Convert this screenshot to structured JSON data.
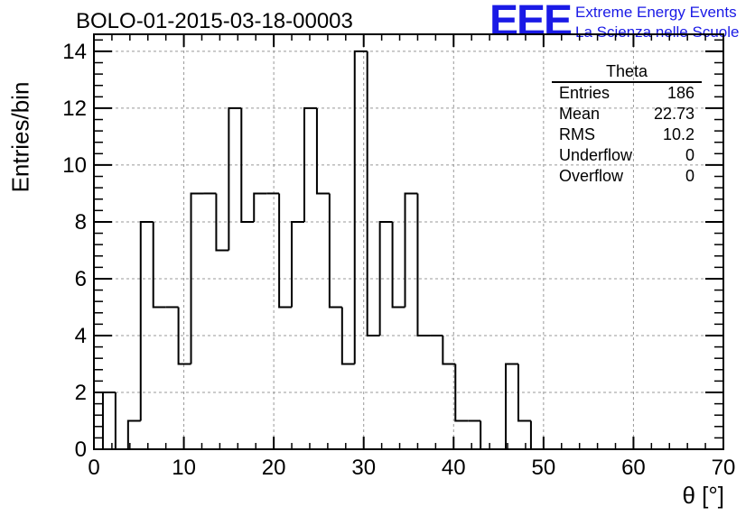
{
  "title": "BOLO-01-2015-03-18-00003",
  "logo": {
    "mark": "EEE",
    "line1": "Extreme Energy Events",
    "line2": "La Scienza nelle Scuole",
    "color": "#1a1ae6"
  },
  "stats": {
    "title": "Theta",
    "rows": [
      {
        "label": "Entries",
        "value": "186"
      },
      {
        "label": "Mean",
        "value": "22.73"
      },
      {
        "label": "RMS",
        "value": "10.2"
      },
      {
        "label": "Underflow",
        "value": "0"
      },
      {
        "label": "Overflow",
        "value": "0"
      }
    ]
  },
  "chart_data": {
    "type": "histogram",
    "title": "BOLO-01-2015-03-18-00003",
    "xlabel": "θ [°]",
    "ylabel": "Entries/bin",
    "xlim": [
      0,
      70
    ],
    "ylim": [
      0,
      14.6
    ],
    "bin_width": 1.4,
    "bin_start": 1.0,
    "values": [
      2,
      0,
      1,
      8,
      5,
      5,
      3,
      9,
      9,
      7,
      12,
      8,
      9,
      9,
      5,
      8,
      12,
      9,
      5,
      3,
      14,
      4,
      8,
      5,
      9,
      4,
      4,
      3,
      1,
      1,
      0,
      0,
      3,
      1,
      0
    ],
    "x_ticks": [
      "0",
      "10",
      "20",
      "30",
      "40",
      "50",
      "60",
      "70"
    ],
    "y_ticks": [
      "0",
      "2",
      "4",
      "6",
      "8",
      "10",
      "12",
      "14"
    ],
    "grid": true,
    "legend": "top-right"
  }
}
